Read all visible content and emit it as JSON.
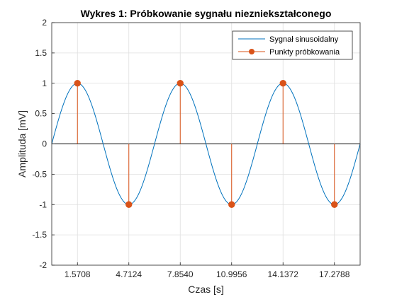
{
  "chart_data": {
    "type": "line",
    "title": "Wykres 1: Próbkowanie sygnału niezniekształconego",
    "xlabel": "Czas [s]",
    "ylabel": "Amplituda [mV]",
    "xlim": [
      0,
      18.85
    ],
    "ylim": [
      -2,
      2
    ],
    "x_ticks": [
      1.5708,
      4.7124,
      7.854,
      10.9956,
      14.1372,
      17.2788
    ],
    "x_tick_labels": [
      "1.5708",
      "4.7124",
      "7.8540",
      "10.9956",
      "14.1372",
      "17.2788"
    ],
    "y_ticks": [
      -2,
      -1.5,
      -1,
      -0.5,
      0,
      0.5,
      1,
      1.5,
      2
    ],
    "y_tick_labels": [
      "-2",
      "-1.5",
      "-1",
      "-0.5",
      "0",
      "0.5",
      "1",
      "1.5",
      "2"
    ],
    "grid": true,
    "legend_position": "top-right",
    "series": [
      {
        "name": "Sygnał sinusoidalny",
        "kind": "line",
        "color": "#0072BD",
        "function": "sin",
        "x_range": [
          0,
          18.85
        ]
      },
      {
        "name": "Punkty próbkowania",
        "kind": "stem",
        "color": "#D95319",
        "x": [
          1.5708,
          4.7124,
          7.854,
          10.9956,
          14.1372,
          17.2788
        ],
        "y": [
          1,
          -1,
          1,
          -1,
          1,
          -1
        ]
      }
    ]
  }
}
